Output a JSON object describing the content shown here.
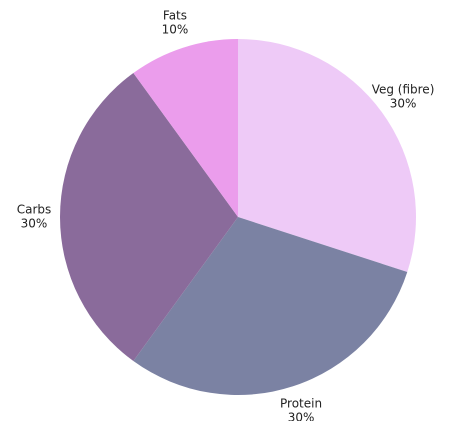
{
  "chart_data": {
    "type": "pie",
    "categories": [
      "Veg (fibre)",
      "Protein",
      "Carbs",
      "Fats"
    ],
    "values": [
      30,
      30,
      30,
      10
    ],
    "value_labels": [
      "30%",
      "30%",
      "30%",
      "10%"
    ],
    "colors": [
      "#eecaf7",
      "#7b82a3",
      "#8a6b9b",
      "#eb9dec"
    ]
  }
}
